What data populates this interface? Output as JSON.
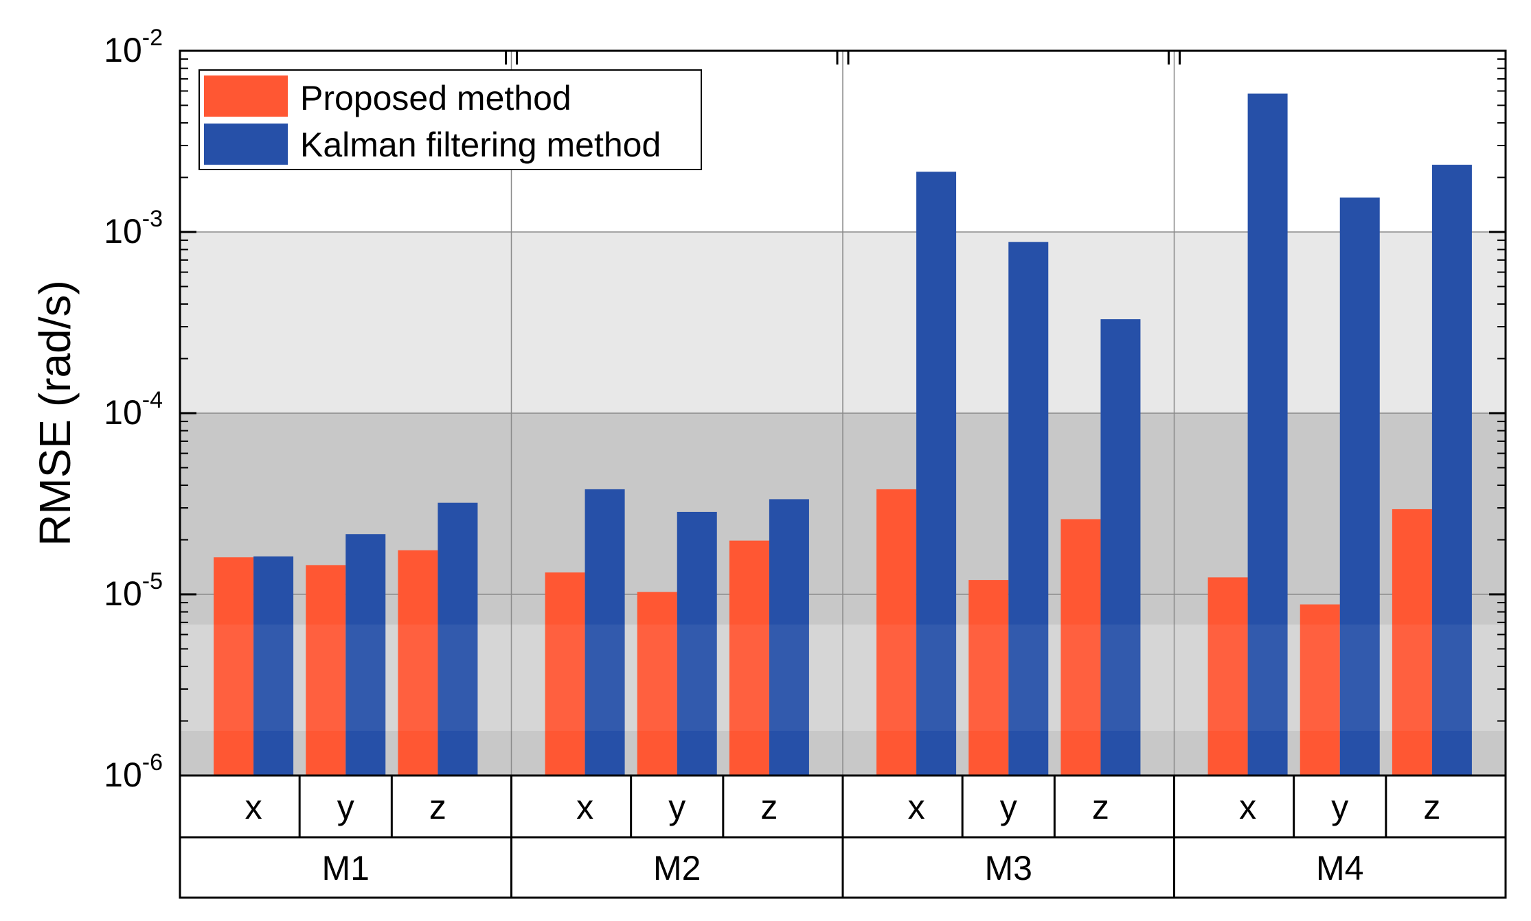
{
  "chart_data": {
    "type": "bar",
    "title": "",
    "ylabel": "RMSE  (rad/s)",
    "yscale": "log",
    "ylim": [
      1e-06,
      0.01
    ],
    "y_ticks": [
      {
        "base": "10",
        "exp": "-6"
      },
      {
        "base": "10",
        "exp": "-5"
      },
      {
        "base": "10",
        "exp": "-4"
      },
      {
        "base": "10",
        "exp": "-3"
      },
      {
        "base": "10",
        "exp": "-2"
      }
    ],
    "groups": [
      "M1",
      "M2",
      "M3",
      "M4"
    ],
    "axes_labels": [
      "x",
      "y",
      "z"
    ],
    "legend_position": "top-left",
    "series": [
      {
        "name": "Proposed method",
        "color": "#FF5733",
        "values": [
          [
            1.6e-05,
            1.45e-05,
            1.75e-05
          ],
          [
            1.32e-05,
            1.03e-05,
            1.98e-05
          ],
          [
            3.8e-05,
            1.2e-05,
            2.6e-05
          ],
          [
            1.24e-05,
            8.8e-06,
            2.95e-05
          ]
        ]
      },
      {
        "name": "Kalman filtering method",
        "color": "#2650A8",
        "values": [
          [
            1.62e-05,
            2.15e-05,
            3.2e-05
          ],
          [
            3.8e-05,
            2.85e-05,
            3.35e-05
          ],
          [
            0.00215,
            0.00088,
            0.00033
          ],
          [
            0.0058,
            0.00155,
            0.00235
          ]
        ]
      }
    ]
  }
}
